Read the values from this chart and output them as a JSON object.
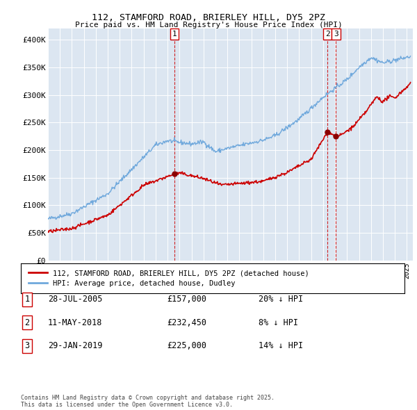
{
  "title": "112, STAMFORD ROAD, BRIERLEY HILL, DY5 2PZ",
  "subtitle": "Price paid vs. HM Land Registry's House Price Index (HPI)",
  "ylabel_ticks": [
    "£0",
    "£50K",
    "£100K",
    "£150K",
    "£200K",
    "£250K",
    "£300K",
    "£350K",
    "£400K"
  ],
  "ytick_values": [
    0,
    50000,
    100000,
    150000,
    200000,
    250000,
    300000,
    350000,
    400000
  ],
  "ylim": [
    0,
    420000
  ],
  "xlim_start": 1995.0,
  "xlim_end": 2025.5,
  "background_color": "#dce6f1",
  "plot_bg_color": "#dce6f1",
  "line_color_hpi": "#6fa8dc",
  "line_color_price": "#cc0000",
  "dashed_line_color": "#cc0000",
  "legend_label_price": "112, STAMFORD ROAD, BRIERLEY HILL, DY5 2PZ (detached house)",
  "legend_label_hpi": "HPI: Average price, detached house, Dudley",
  "transaction1_date": "28-JUL-2005",
  "transaction1_price": 157000,
  "transaction1_hpi": "20% ↓ HPI",
  "transaction1_x": 2005.57,
  "transaction2_date": "11-MAY-2018",
  "transaction2_price": 232450,
  "transaction2_hpi": "8% ↓ HPI",
  "transaction2_x": 2018.36,
  "transaction3_date": "29-JAN-2019",
  "transaction3_price": 225000,
  "transaction3_hpi": "14% ↓ HPI",
  "transaction3_x": 2019.08,
  "footer": "Contains HM Land Registry data © Crown copyright and database right 2025.\nThis data is licensed under the Open Government Licence v3.0."
}
